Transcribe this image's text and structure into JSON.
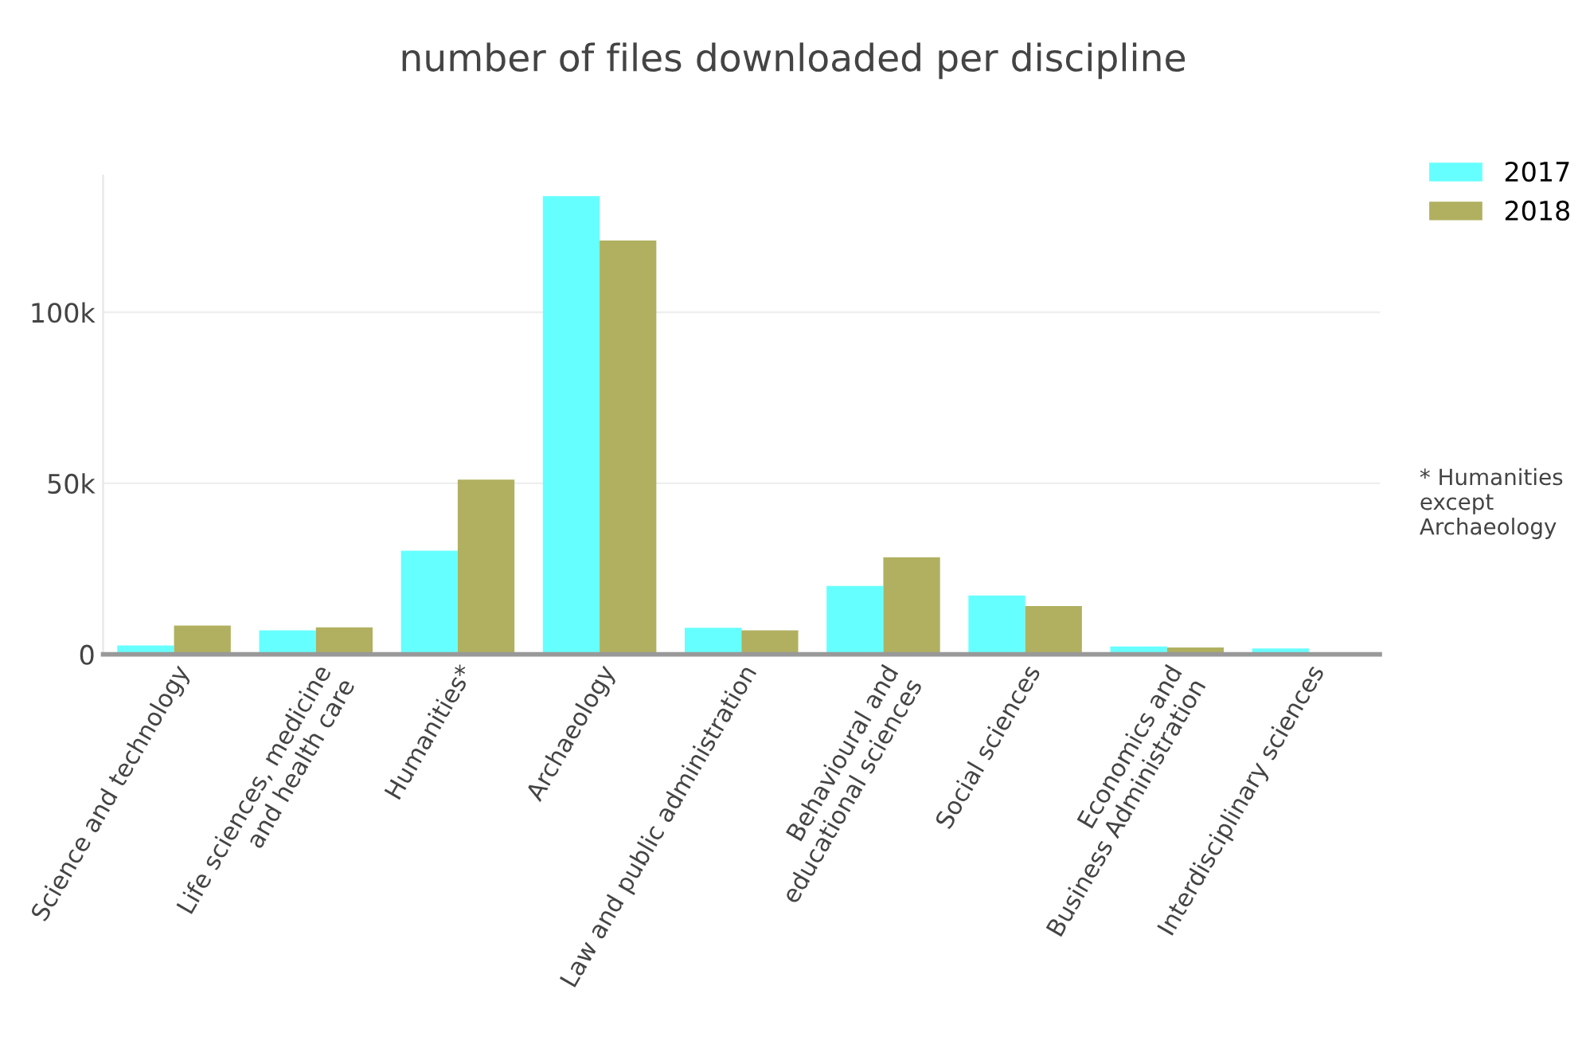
{
  "chart_data": {
    "type": "bar",
    "title": "number of files downloaded per discipline",
    "categories": [
      "Science and technology",
      "Life sciences, medicine\nand health care",
      "Humanities*",
      "Archaeology",
      "Law and public administration",
      "Behavioural and\neducational sciences",
      "Social sciences",
      "Economics and\nBusiness Administration",
      "Interdisciplinary sciences"
    ],
    "series": [
      {
        "name": "2017",
        "color": "#66ffff",
        "values": [
          2600,
          7000,
          30300,
          134000,
          7800,
          20000,
          17200,
          2300,
          1700
        ]
      },
      {
        "name": "2018",
        "color": "#b0b060",
        "values": [
          8400,
          7900,
          51100,
          121000,
          7000,
          28400,
          14100,
          2000,
          600
        ]
      }
    ],
    "ylim": [
      0,
      140000
    ],
    "yticks": [
      {
        "value": 0,
        "label": "0"
      },
      {
        "value": 50000,
        "label": "50k"
      },
      {
        "value": 100000,
        "label": "100k"
      }
    ],
    "grid": "y",
    "legend": "top right",
    "annotations": [
      "* Humanities\nexcept\nArchaeology"
    ]
  }
}
